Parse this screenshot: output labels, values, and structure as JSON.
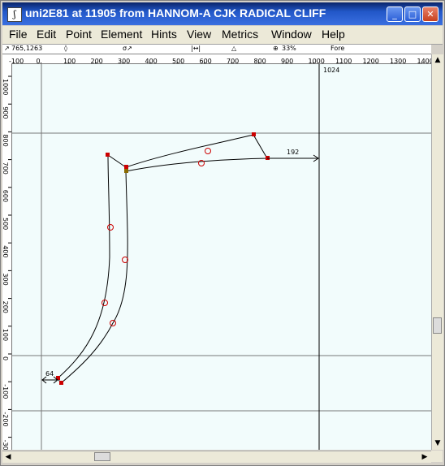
{
  "window": {
    "title": "uni2E81 at 11905 from HANNOM-A CJK RADICAL CLIFF",
    "icon_glyph": "ʃ",
    "minimize_glyph": "_",
    "maximize_glyph": "□",
    "close_glyph": "✕"
  },
  "menu": [
    "File",
    "Edit",
    "Point",
    "Element",
    "Hints",
    "View",
    "Metrics",
    "Window",
    "Help"
  ],
  "infobar": {
    "coords": "765,1263",
    "zoom": "33%",
    "layer": "Fore"
  },
  "ruler": {
    "h_ticks": [
      "-100",
      "0",
      "100",
      "200",
      "300",
      "400",
      "500",
      "600",
      "700",
      "800",
      "900",
      "1000",
      "1100",
      "1200",
      "1300",
      "1400"
    ],
    "v_ticks": [
      "1000",
      "900",
      "800",
      "700",
      "600",
      "500",
      "400",
      "300",
      "200",
      "100",
      "0",
      "-100",
      "-200",
      "-300"
    ]
  },
  "canvas": {
    "advance_width_label": "1024",
    "right_bearing_label": "192",
    "left_bearing_label": "64"
  },
  "colors": {
    "canvas_bg": "#f2fcfc",
    "outline": "#000000",
    "point": "#cc0000",
    "title_bar": "#2257c8"
  }
}
